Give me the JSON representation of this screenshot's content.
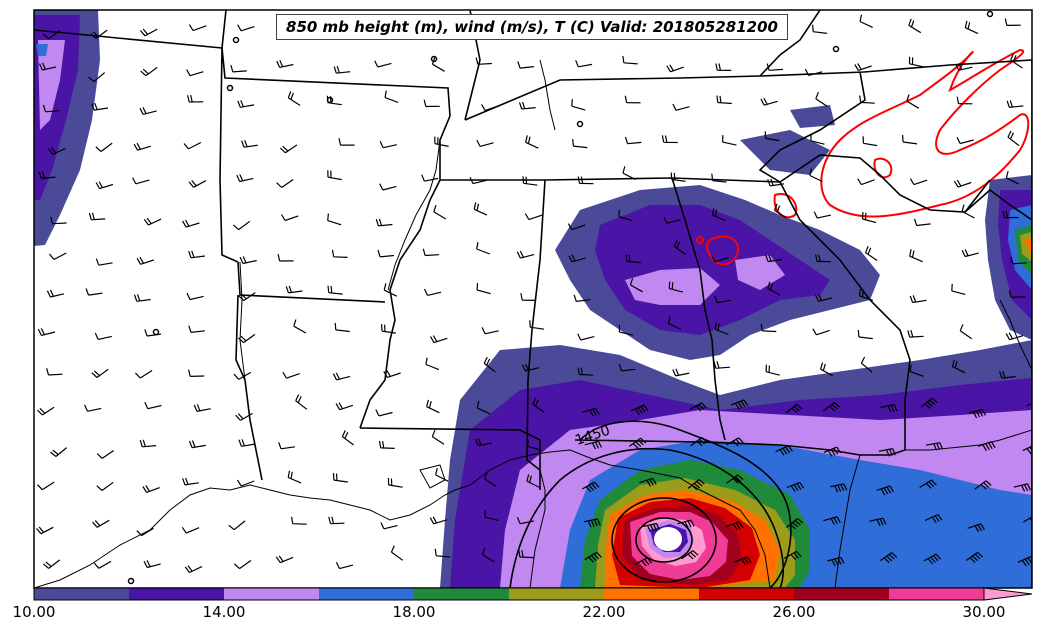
{
  "title": "850 mb height (m), wind (m/s), T (C) Valid: 201805281200",
  "contour_label": "1450",
  "colorbar": {
    "tick_labels": [
      "10.00",
      "14.00",
      "18.00",
      "22.00",
      "26.00",
      "30.00"
    ],
    "tick_values": [
      10,
      14,
      18,
      22,
      26,
      30
    ],
    "range": [
      10,
      31
    ],
    "colors": [
      "#4a4a99",
      "#4a14a6",
      "#c088f0",
      "#2f6ed8",
      "#1e8a3a",
      "#9a9c1a",
      "#ff7200",
      "#d20000",
      "#a0001e",
      "#f03c96",
      "#ff9ad0"
    ]
  },
  "legend_colors": {
    "coast_states": "#000000",
    "warm_contour": "#ff0000",
    "height_contour": "#000000"
  }
}
